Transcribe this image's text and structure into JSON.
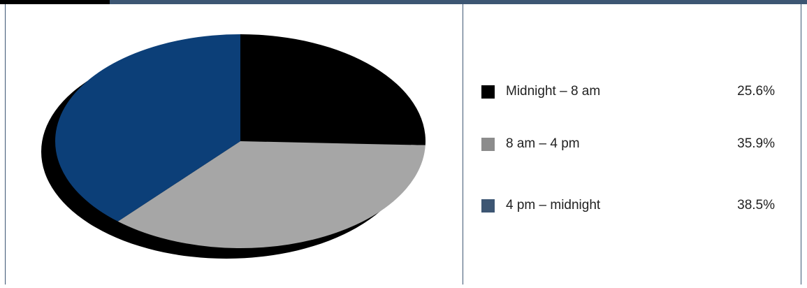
{
  "chart_data": {
    "type": "pie",
    "title": "",
    "slices": [
      {
        "label": "Midnight – 8 am",
        "value": 25.6,
        "display": "25.6%",
        "color": "#000000"
      },
      {
        "label": "8 am – 4 pm",
        "value": 35.9,
        "display": "35.9%",
        "color": "#a6a6a6"
      },
      {
        "label": "4 pm – midnight",
        "value": 38.5,
        "display": "38.5%",
        "color": "#0c3f78"
      }
    ],
    "legend_swatch_colors": [
      "#000000",
      "#8c8c8c",
      "#3d5673"
    ],
    "legend_position": "right",
    "style": "3d-tilted-with-shadow"
  },
  "theme": {
    "frame_color": "#3d5673",
    "accent_color": "#000000"
  }
}
